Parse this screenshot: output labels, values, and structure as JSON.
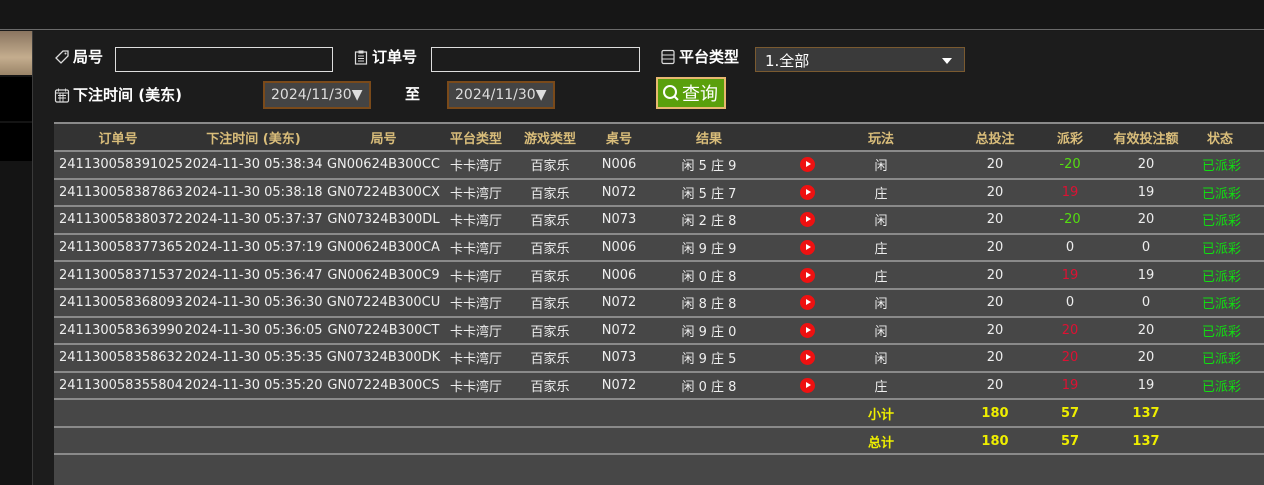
{
  "filters": {
    "round_label": "局号",
    "round_value": "",
    "order_label": "订单号",
    "order_value": "",
    "platform_label": "平台类型",
    "platform_value": "1.全部",
    "time_label": "下注时间 (美东)",
    "date_from": "2024/11/30▼",
    "to_label": "至",
    "date_to": "2024/11/30▼",
    "query_label": "查询"
  },
  "table": {
    "headers": [
      "订单号",
      "下注时间 (美东)",
      "局号",
      "平台类型",
      "游戏类型",
      "桌号",
      "结果",
      "",
      "玩法",
      "总投注",
      "派彩",
      "有效投注额",
      "状态"
    ],
    "rows": [
      {
        "order": "241130058391025",
        "time": "2024-11-30 05:38:34",
        "round": "GN00624B300CC",
        "platform": "卡卡湾厅",
        "game": "百家乐",
        "table": "N006",
        "result": "闲 5 庄 9",
        "bet": "闲",
        "total": "20",
        "payout": "-20",
        "payout_color": "#55dd11",
        "valid": "20",
        "status": "已派彩"
      },
      {
        "order": "241130058387863",
        "time": "2024-11-30 05:38:18",
        "round": "GN07224B300CX",
        "platform": "卡卡湾厅",
        "game": "百家乐",
        "table": "N072",
        "result": "闲 5 庄 7",
        "bet": "庄",
        "total": "20",
        "payout": "19",
        "payout_color": "#dd1133",
        "valid": "19",
        "status": "已派彩"
      },
      {
        "order": "241130058380372",
        "time": "2024-11-30 05:37:37",
        "round": "GN07324B300DL",
        "platform": "卡卡湾厅",
        "game": "百家乐",
        "table": "N073",
        "result": "闲 2 庄 8",
        "bet": "闲",
        "total": "20",
        "payout": "-20",
        "payout_color": "#55dd11",
        "valid": "20",
        "status": "已派彩"
      },
      {
        "order": "241130058377365",
        "time": "2024-11-30 05:37:19",
        "round": "GN00624B300CA",
        "platform": "卡卡湾厅",
        "game": "百家乐",
        "table": "N006",
        "result": "闲 9 庄 9",
        "bet": "庄",
        "total": "20",
        "payout": "0",
        "payout_color": "#eeeeee",
        "valid": "0",
        "status": "已派彩"
      },
      {
        "order": "241130058371537",
        "time": "2024-11-30 05:36:47",
        "round": "GN00624B300C9",
        "platform": "卡卡湾厅",
        "game": "百家乐",
        "table": "N006",
        "result": "闲 0 庄 8",
        "bet": "庄",
        "total": "20",
        "payout": "19",
        "payout_color": "#dd1133",
        "valid": "19",
        "status": "已派彩"
      },
      {
        "order": "241130058368093",
        "time": "2024-11-30 05:36:30",
        "round": "GN07224B300CU",
        "platform": "卡卡湾厅",
        "game": "百家乐",
        "table": "N072",
        "result": "闲 8 庄 8",
        "bet": "闲",
        "total": "20",
        "payout": "0",
        "payout_color": "#eeeeee",
        "valid": "0",
        "status": "已派彩"
      },
      {
        "order": "241130058363990",
        "time": "2024-11-30 05:36:05",
        "round": "GN07224B300CT",
        "platform": "卡卡湾厅",
        "game": "百家乐",
        "table": "N072",
        "result": "闲 9 庄 0",
        "bet": "闲",
        "total": "20",
        "payout": "20",
        "payout_color": "#dd1133",
        "valid": "20",
        "status": "已派彩"
      },
      {
        "order": "241130058358632",
        "time": "2024-11-30 05:35:35",
        "round": "GN07324B300DK",
        "platform": "卡卡湾厅",
        "game": "百家乐",
        "table": "N073",
        "result": "闲 9 庄 5",
        "bet": "闲",
        "total": "20",
        "payout": "20",
        "payout_color": "#dd1133",
        "valid": "20",
        "status": "已派彩"
      },
      {
        "order": "241130058355804",
        "time": "2024-11-30 05:35:20",
        "round": "GN07224B300CS",
        "platform": "卡卡湾厅",
        "game": "百家乐",
        "table": "N072",
        "result": "闲 0 庄 8",
        "bet": "庄",
        "total": "20",
        "payout": "19",
        "payout_color": "#dd1133",
        "valid": "19",
        "status": "已派彩"
      }
    ],
    "subtotal": {
      "label": "小计",
      "total": "180",
      "payout": "57",
      "valid": "137"
    },
    "grandtotal": {
      "label": "总计",
      "total": "180",
      "payout": "57",
      "valid": "137"
    }
  },
  "colors": {
    "header_text": "#d9bd7a",
    "status": "#11dd11",
    "totals": "#eeee00",
    "query_button": "#5aa00c"
  }
}
